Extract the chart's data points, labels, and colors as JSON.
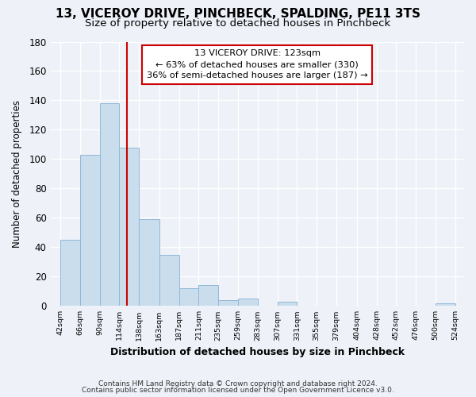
{
  "title": "13, VICEROY DRIVE, PINCHBECK, SPALDING, PE11 3TS",
  "subtitle": "Size of property relative to detached houses in Pinchbeck",
  "xlabel": "Distribution of detached houses by size in Pinchbeck",
  "ylabel": "Number of detached properties",
  "bar_edges": [
    42,
    66,
    90,
    114,
    138,
    163,
    187,
    211,
    235,
    259,
    283,
    307,
    331,
    355,
    379,
    404,
    428,
    452,
    476,
    500,
    524
  ],
  "bar_heights": [
    45,
    103,
    138,
    108,
    59,
    35,
    12,
    14,
    4,
    5,
    0,
    3,
    0,
    0,
    0,
    0,
    0,
    0,
    0,
    2
  ],
  "bar_color": "#c9dded",
  "bar_edge_color": "#90b8d8",
  "vline_x": 123,
  "vline_color": "#cc0000",
  "annotation_title": "13 VICEROY DRIVE: 123sqm",
  "annotation_line1": "← 63% of detached houses are smaller (330)",
  "annotation_line2": "36% of semi-detached houses are larger (187) →",
  "annotation_box_facecolor": "#ffffff",
  "annotation_box_edgecolor": "#cc0000",
  "ylim": [
    0,
    180
  ],
  "xlim_left": 30,
  "xlim_right": 535,
  "tick_labels": [
    "42sqm",
    "66sqm",
    "90sqm",
    "114sqm",
    "138sqm",
    "163sqm",
    "187sqm",
    "211sqm",
    "235sqm",
    "259sqm",
    "283sqm",
    "307sqm",
    "331sqm",
    "355sqm",
    "379sqm",
    "404sqm",
    "428sqm",
    "452sqm",
    "476sqm",
    "500sqm",
    "524sqm"
  ],
  "tick_positions": [
    42,
    66,
    90,
    114,
    138,
    163,
    187,
    211,
    235,
    259,
    283,
    307,
    331,
    355,
    379,
    404,
    428,
    452,
    476,
    500,
    524
  ],
  "footer_line1": "Contains HM Land Registry data © Crown copyright and database right 2024.",
  "footer_line2": "Contains public sector information licensed under the Open Government Licence v3.0.",
  "bg_color": "#eef2f8",
  "grid_color": "#ffffff",
  "title_fontsize": 11,
  "subtitle_fontsize": 9.5,
  "ytick_labels": [
    0,
    20,
    40,
    60,
    80,
    100,
    120,
    140,
    160,
    180
  ]
}
